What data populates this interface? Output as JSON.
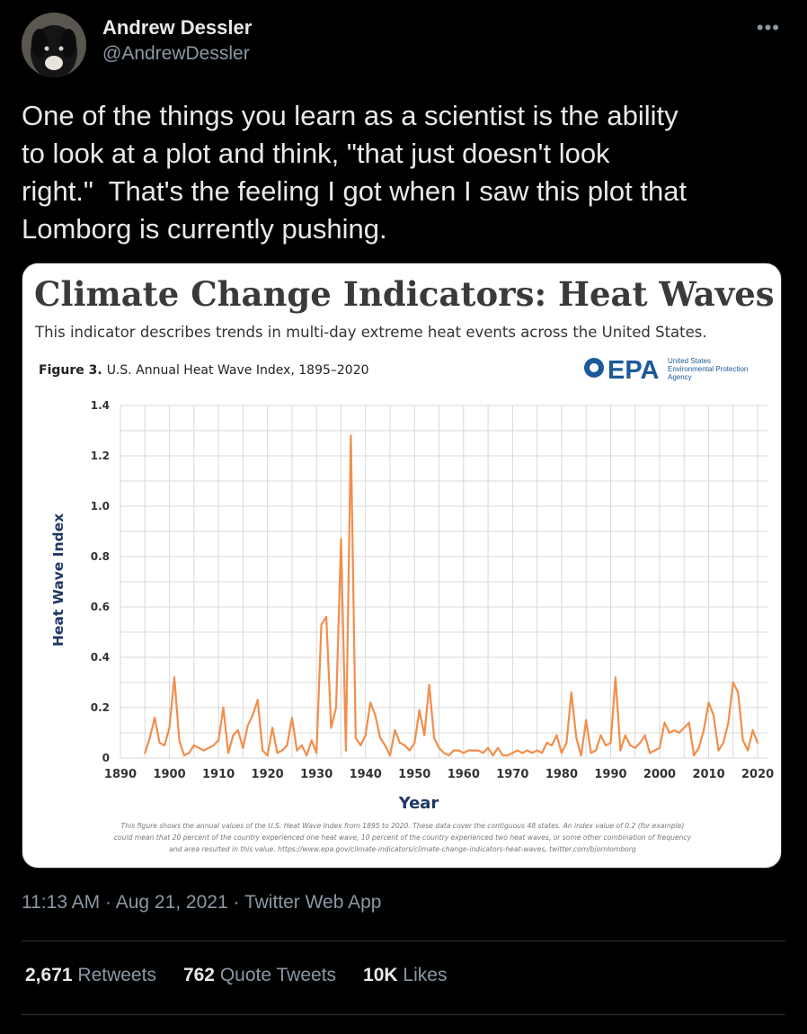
{
  "author": {
    "name": "Andrew Dessler",
    "handle": "@AndrewDessler"
  },
  "more_icon": "more-horizontal-icon",
  "tweet": {
    "text": "One of the things you learn as a scientist is the ability\nto look at a plot and think, \"that just doesn't look\nright.\"  That's the feeling I got when I saw this plot that\nLomborg is currently pushing."
  },
  "figure": {
    "headline": "Climate Change Indicators: Heat Waves",
    "subheadline": "This indicator describes trends in multi-day extreme heat events across the United States.",
    "figure_label": "Figure 3.",
    "figure_caption": "U.S. Annual Heat Wave Index, 1895–2020",
    "epa_logo_text": "EPA",
    "epa_agency_lines": [
      "United States",
      "Environmental Protection",
      "Agency"
    ],
    "footnote_lines": [
      "This figure shows the annual values of the U.S. Heat Wave Index from 1895 to 2020. These data cover the contiguous 48 states. An index value of 0.2 (for example)",
      "could mean that 20 percent of the country experienced one heat wave, 10 percent of the country experienced two heat waves, or some other combination of frequency",
      "and area resulted in this value. https://www.epa.gov/climate-indicators/climate-change-indicators-heat-waves, twitter.com/bjornlomborg"
    ]
  },
  "chart_data": {
    "type": "line",
    "title": "U.S. Annual Heat Wave Index, 1895–2020",
    "xlabel": "Year",
    "ylabel": "Heat Wave Index",
    "xlim": [
      1890,
      2022
    ],
    "ylim": [
      0,
      1.4
    ],
    "xticks": [
      1890,
      1900,
      1910,
      1920,
      1930,
      1940,
      1950,
      1960,
      1970,
      1980,
      1990,
      2000,
      2010,
      2020
    ],
    "yticks": [
      0,
      0.2,
      0.4,
      0.6,
      0.8,
      1.0,
      1.2,
      1.4
    ],
    "ytick_labels": [
      "0",
      "0.2",
      "0.4",
      "0.6",
      "0.8",
      "1.0",
      "1.2",
      "1.4"
    ],
    "grid": true,
    "color": "#f28e4c",
    "x": [
      1895,
      1896,
      1897,
      1898,
      1899,
      1900,
      1901,
      1902,
      1903,
      1904,
      1905,
      1906,
      1907,
      1908,
      1909,
      1910,
      1911,
      1912,
      1913,
      1914,
      1915,
      1916,
      1917,
      1918,
      1919,
      1920,
      1921,
      1922,
      1923,
      1924,
      1925,
      1926,
      1927,
      1928,
      1929,
      1930,
      1931,
      1932,
      1933,
      1934,
      1935,
      1936,
      1937,
      1938,
      1939,
      1940,
      1941,
      1942,
      1943,
      1944,
      1945,
      1946,
      1947,
      1948,
      1949,
      1950,
      1951,
      1952,
      1953,
      1954,
      1955,
      1956,
      1957,
      1958,
      1959,
      1960,
      1961,
      1962,
      1963,
      1964,
      1965,
      1966,
      1967,
      1968,
      1969,
      1970,
      1971,
      1972,
      1973,
      1974,
      1975,
      1976,
      1977,
      1978,
      1979,
      1980,
      1981,
      1982,
      1983,
      1984,
      1985,
      1986,
      1987,
      1988,
      1989,
      1990,
      1991,
      1992,
      1993,
      1994,
      1995,
      1996,
      1997,
      1998,
      1999,
      2000,
      2001,
      2002,
      2003,
      2004,
      2005,
      2006,
      2007,
      2008,
      2009,
      2010,
      2011,
      2012,
      2013,
      2014,
      2015,
      2016,
      2017,
      2018,
      2019,
      2020
    ],
    "values": [
      0.02,
      0.08,
      0.16,
      0.06,
      0.05,
      0.12,
      0.32,
      0.07,
      0.01,
      0.02,
      0.05,
      0.04,
      0.03,
      0.04,
      0.05,
      0.07,
      0.2,
      0.02,
      0.09,
      0.11,
      0.04,
      0.13,
      0.17,
      0.23,
      0.03,
      0.01,
      0.12,
      0.02,
      0.03,
      0.05,
      0.16,
      0.03,
      0.05,
      0.01,
      0.07,
      0.02,
      0.53,
      0.56,
      0.12,
      0.2,
      0.87,
      0.03,
      1.28,
      0.08,
      0.05,
      0.09,
      0.22,
      0.17,
      0.08,
      0.05,
      0.01,
      0.11,
      0.06,
      0.05,
      0.03,
      0.06,
      0.19,
      0.09,
      0.29,
      0.08,
      0.04,
      0.02,
      0.01,
      0.03,
      0.03,
      0.02,
      0.03,
      0.03,
      0.03,
      0.02,
      0.04,
      0.01,
      0.04,
      0.01,
      0.01,
      0.02,
      0.03,
      0.02,
      0.03,
      0.02,
      0.03,
      0.02,
      0.06,
      0.05,
      0.09,
      0.02,
      0.06,
      0.26,
      0.08,
      0.01,
      0.15,
      0.02,
      0.03,
      0.09,
      0.05,
      0.06,
      0.32,
      0.03,
      0.09,
      0.05,
      0.04,
      0.06,
      0.09,
      0.02,
      0.03,
      0.04,
      0.14,
      0.1,
      0.11,
      0.1,
      0.12,
      0.14,
      0.01,
      0.04,
      0.11,
      0.22,
      0.17,
      0.03,
      0.06,
      0.14,
      0.3,
      0.26,
      0.07,
      0.03,
      0.11,
      0.06
    ]
  },
  "meta": {
    "time": "11:13 AM",
    "date": "Aug 21, 2021",
    "client": "Twitter Web App",
    "separator": " · "
  },
  "stats": {
    "retweets_count": "2,671",
    "retweets_label": "Retweets",
    "quote_count": "762",
    "quote_label": "Quote Tweets",
    "likes_count": "10K",
    "likes_label": "Likes"
  }
}
